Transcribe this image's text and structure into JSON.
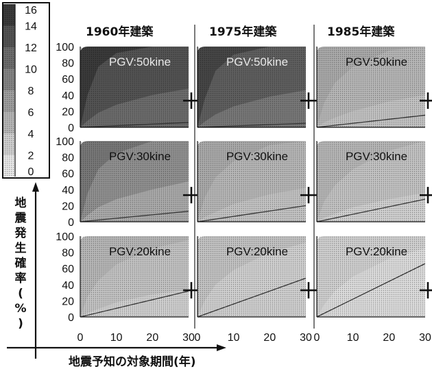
{
  "chart_data": {
    "type": "area",
    "title": "",
    "column_headers": [
      "1960年建築",
      "1975年建築",
      "1985年建築"
    ],
    "row_labels": [
      "PGV:50kine",
      "PGV:30kine",
      "PGV:20kine"
    ],
    "xlabel": "地震予知の対象期間(年)",
    "ylabel": "地震発生確率(%)",
    "x_ticks": [
      "0",
      "10",
      "20",
      "30"
    ],
    "y_ticks": [
      "0",
      "20",
      "40",
      "60",
      "80",
      "100"
    ],
    "xlim": [
      0,
      30
    ],
    "ylim": [
      0,
      100
    ],
    "colorbar": {
      "ticks": [
        "16",
        "14",
        "12",
        "10",
        "8",
        "6",
        "4",
        "2",
        "0"
      ],
      "range": [
        0,
        16
      ]
    },
    "marker": {
      "x": 30,
      "y": 33
    },
    "panels": [
      {
        "building": "1960年建築",
        "pgv": "PGV:50kine",
        "level": 15.5,
        "band_levels": [
          15,
          13,
          11
        ],
        "boundaries": [
          [
            0,
            0,
            0
          ],
          [
            2,
            40,
            8
          ],
          [
            5,
            75,
            18
          ],
          [
            10,
            92,
            28
          ],
          [
            20,
            100,
            40
          ],
          [
            30,
            100,
            48
          ]
        ],
        "lower_line": [
          [
            0,
            0
          ],
          [
            30,
            6
          ]
        ]
      },
      {
        "building": "1975年建築",
        "pgv": "PGV:50kine",
        "level": 14,
        "band_levels": [
          14,
          12,
          10
        ],
        "boundaries": [
          [
            0,
            0,
            0
          ],
          [
            2,
            35,
            7
          ],
          [
            5,
            70,
            16
          ],
          [
            10,
            90,
            26
          ],
          [
            20,
            100,
            38
          ],
          [
            30,
            100,
            46
          ]
        ],
        "lower_line": [
          [
            0,
            0
          ],
          [
            30,
            5
          ]
        ]
      },
      {
        "building": "1985年建築",
        "pgv": "PGV:50kine",
        "level": 6,
        "band_levels": [
          6,
          5,
          4
        ],
        "boundaries": [
          [
            0,
            0,
            0
          ],
          [
            2,
            30,
            6
          ],
          [
            5,
            55,
            12
          ],
          [
            10,
            75,
            20
          ],
          [
            20,
            95,
            32
          ],
          [
            30,
            100,
            40
          ]
        ],
        "lower_line": [
          [
            0,
            0
          ],
          [
            30,
            15
          ]
        ]
      },
      {
        "building": "1960年建築",
        "pgv": "PGV:30kine",
        "level": 9,
        "band_levels": [
          10,
          8,
          6
        ],
        "boundaries": [
          [
            0,
            0,
            0
          ],
          [
            2,
            35,
            8
          ],
          [
            5,
            65,
            18
          ],
          [
            10,
            85,
            28
          ],
          [
            20,
            100,
            40
          ],
          [
            30,
            100,
            50
          ]
        ],
        "lower_line": [
          [
            0,
            0
          ],
          [
            30,
            13
          ]
        ]
      },
      {
        "building": "1975年建築",
        "pgv": "PGV:30kine",
        "level": 6,
        "band_levels": [
          6,
          5,
          4
        ],
        "boundaries": [
          [
            0,
            0,
            0
          ],
          [
            2,
            30,
            6
          ],
          [
            5,
            55,
            12
          ],
          [
            10,
            75,
            22
          ],
          [
            20,
            95,
            34
          ],
          [
            30,
            100,
            42
          ]
        ],
        "lower_line": [
          [
            0,
            0
          ],
          [
            30,
            20
          ]
        ]
      },
      {
        "building": "1985年建築",
        "pgv": "PGV:30kine",
        "level": 4.5,
        "band_levels": [
          5,
          4,
          3
        ],
        "boundaries": [
          [
            0,
            0,
            0
          ],
          [
            2,
            25,
            5
          ],
          [
            5,
            45,
            10
          ],
          [
            10,
            65,
            18
          ],
          [
            20,
            88,
            28
          ],
          [
            30,
            100,
            36
          ]
        ],
        "lower_line": [
          [
            0,
            0
          ],
          [
            30,
            28
          ]
        ]
      },
      {
        "building": "1960年建築",
        "pgv": "PGV:20kine",
        "level": 4,
        "band_levels": [
          5,
          4,
          3
        ],
        "boundaries": [
          [
            0,
            0,
            0
          ],
          [
            2,
            25,
            5
          ],
          [
            5,
            45,
            10
          ],
          [
            10,
            65,
            18
          ],
          [
            20,
            85,
            28
          ],
          [
            30,
            95,
            34
          ]
        ],
        "lower_line": [
          [
            0,
            0
          ],
          [
            30,
            32
          ]
        ]
      },
      {
        "building": "1975年建築",
        "pgv": "PGV:20kine",
        "level": 3.5,
        "band_levels": [
          4,
          3,
          3
        ],
        "boundaries": [
          [
            0,
            0,
            0
          ],
          [
            2,
            20,
            4
          ],
          [
            5,
            40,
            9
          ],
          [
            10,
            58,
            16
          ],
          [
            20,
            80,
            26
          ],
          [
            30,
            92,
            32
          ]
        ],
        "lower_line": [
          [
            0,
            0
          ],
          [
            30,
            48
          ]
        ]
      },
      {
        "building": "1985年建築",
        "pgv": "PGV:20kine",
        "level": 2.5,
        "band_levels": [
          3,
          2,
          2
        ],
        "boundaries": [
          [
            0,
            0,
            0
          ],
          [
            2,
            15,
            3
          ],
          [
            5,
            32,
            7
          ],
          [
            10,
            50,
            14
          ],
          [
            20,
            72,
            24
          ],
          [
            30,
            85,
            30
          ]
        ],
        "lower_line": [
          [
            0,
            0
          ],
          [
            30,
            66
          ]
        ]
      }
    ]
  }
}
